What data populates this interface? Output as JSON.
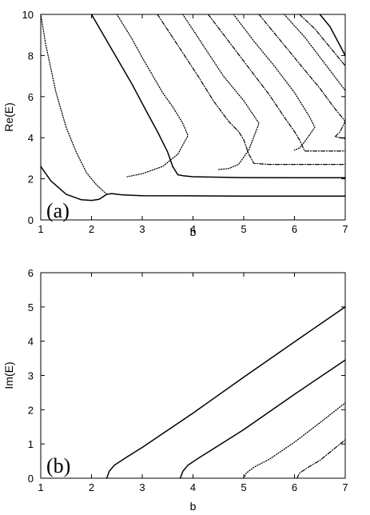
{
  "chart_data": [
    {
      "type": "line",
      "panel_label": "(a)",
      "xlabel": "b",
      "ylabel": "Re(E)",
      "xlim": [
        1,
        7
      ],
      "ylim": [
        0,
        10
      ],
      "xticks": [
        "1",
        "2",
        "3",
        "4",
        "5",
        "6",
        "7"
      ],
      "yticks": [
        "0",
        "2",
        "4",
        "6",
        "8",
        "10"
      ],
      "grid": false,
      "legend": "none",
      "series": [
        {
          "style": "solid",
          "color": "#000000",
          "points": [
            [
              1.0,
              2.6
            ],
            [
              1.2,
              1.9
            ],
            [
              1.5,
              1.25
            ],
            [
              1.8,
              0.98
            ],
            [
              2.0,
              0.95
            ],
            [
              2.15,
              1.0
            ],
            [
              2.3,
              1.25
            ],
            [
              2.4,
              1.28
            ],
            [
              2.6,
              1.22
            ],
            [
              3.0,
              1.18
            ],
            [
              4.0,
              1.17
            ],
            [
              5.0,
              1.16
            ],
            [
              6.0,
              1.16
            ],
            [
              7.0,
              1.16
            ]
          ]
        },
        {
          "style": "dotted",
          "color": "#000000",
          "points": [
            [
              1.0,
              10.0
            ],
            [
              1.1,
              8.5
            ],
            [
              1.3,
              6.2
            ],
            [
              1.5,
              4.5
            ],
            [
              1.7,
              3.3
            ],
            [
              1.9,
              2.3
            ],
            [
              2.1,
              1.7
            ],
            [
              2.3,
              1.25
            ]
          ]
        },
        {
          "style": "solid",
          "color": "#000000",
          "points": [
            [
              2.0,
              10.0
            ],
            [
              2.4,
              8.3
            ],
            [
              2.8,
              6.6
            ],
            [
              3.1,
              5.2
            ],
            [
              3.3,
              4.3
            ],
            [
              3.5,
              3.3
            ],
            [
              3.6,
              2.6
            ],
            [
              3.7,
              2.2
            ],
            [
              3.8,
              2.15
            ],
            [
              4.0,
              2.1
            ],
            [
              5.0,
              2.06
            ],
            [
              6.0,
              2.05
            ],
            [
              7.0,
              2.05
            ]
          ]
        },
        {
          "style": "dotted",
          "color": "#000000",
          "points": [
            [
              2.5,
              10.0
            ],
            [
              2.8,
              8.8
            ],
            [
              3.0,
              7.9
            ],
            [
              3.4,
              6.2
            ],
            [
              3.6,
              5.5
            ],
            [
              3.8,
              4.7
            ],
            [
              3.9,
              4.1
            ],
            [
              3.7,
              3.2
            ],
            [
              3.4,
              2.6
            ],
            [
              3.0,
              2.25
            ],
            [
              2.7,
              2.1
            ]
          ]
        },
        {
          "style": "dash-dot",
          "color": "#000000",
          "points": [
            [
              3.3,
              10.0
            ],
            [
              3.7,
              8.5
            ],
            [
              4.1,
              7.0
            ],
            [
              4.4,
              5.8
            ],
            [
              4.7,
              4.8
            ],
            [
              4.9,
              4.3
            ],
            [
              5.0,
              3.9
            ],
            [
              5.1,
              3.2
            ],
            [
              5.2,
              2.75
            ],
            [
              5.5,
              2.7
            ],
            [
              6.0,
              2.7
            ],
            [
              7.0,
              2.7
            ]
          ]
        },
        {
          "style": "dotted",
          "color": "#000000",
          "points": [
            [
              3.8,
              10.0
            ],
            [
              4.2,
              8.5
            ],
            [
              4.6,
              7.0
            ],
            [
              5.0,
              5.8
            ],
            [
              5.3,
              4.7
            ],
            [
              5.1,
              3.4
            ],
            [
              4.9,
              2.7
            ],
            [
              4.7,
              2.5
            ],
            [
              4.5,
              2.45
            ]
          ]
        },
        {
          "style": "dash-dot",
          "color": "#000000",
          "points": [
            [
              4.3,
              10.0
            ],
            [
              4.7,
              8.7
            ],
            [
              5.1,
              7.4
            ],
            [
              5.5,
              6.1
            ],
            [
              5.8,
              5.0
            ],
            [
              6.0,
              4.3
            ],
            [
              6.1,
              3.9
            ],
            [
              6.2,
              3.35
            ],
            [
              6.5,
              3.35
            ],
            [
              7.0,
              3.35
            ]
          ]
        },
        {
          "style": "dotted",
          "color": "#000000",
          "points": [
            [
              4.8,
              10.0
            ],
            [
              5.2,
              8.7
            ],
            [
              5.6,
              7.5
            ],
            [
              6.0,
              6.2
            ],
            [
              6.3,
              5.0
            ],
            [
              6.4,
              4.5
            ],
            [
              6.2,
              3.8
            ],
            [
              6.1,
              3.5
            ],
            [
              6.0,
              3.4
            ]
          ]
        },
        {
          "style": "dash-dot",
          "color": "#000000",
          "points": [
            [
              5.3,
              10.0
            ],
            [
              5.7,
              8.8
            ],
            [
              6.1,
              7.6
            ],
            [
              6.5,
              6.4
            ],
            [
              6.8,
              5.4
            ],
            [
              7.0,
              4.8
            ],
            [
              6.9,
              4.3
            ],
            [
              6.8,
              4.05
            ],
            [
              7.0,
              3.95
            ]
          ]
        },
        {
          "style": "dotted",
          "color": "#000000",
          "points": [
            [
              5.8,
              10.0
            ],
            [
              6.2,
              8.9
            ],
            [
              6.6,
              7.6
            ],
            [
              7.0,
              6.3
            ]
          ]
        },
        {
          "style": "dash-dot",
          "color": "#000000",
          "points": [
            [
              6.1,
              10.0
            ],
            [
              6.4,
              9.3
            ],
            [
              6.7,
              8.4
            ],
            [
              7.0,
              7.5
            ]
          ]
        },
        {
          "style": "solid",
          "color": "#000000",
          "points": [
            [
              6.5,
              10.0
            ],
            [
              6.7,
              9.4
            ],
            [
              7.0,
              8.0
            ]
          ]
        }
      ]
    },
    {
      "type": "line",
      "panel_label": "(b)",
      "xlabel": "b",
      "ylabel": "Im(E)",
      "xlim": [
        1,
        7
      ],
      "ylim": [
        0,
        6
      ],
      "xticks": [
        "1",
        "2",
        "3",
        "4",
        "5",
        "6",
        "7"
      ],
      "yticks": [
        "0",
        "1",
        "2",
        "3",
        "4",
        "5",
        "6"
      ],
      "grid": false,
      "legend": "none",
      "series": [
        {
          "style": "solid",
          "color": "#000000",
          "points": [
            [
              2.3,
              0.0
            ],
            [
              2.35,
              0.2
            ],
            [
              2.45,
              0.38
            ],
            [
              2.7,
              0.62
            ],
            [
              3.0,
              0.9
            ],
            [
              4.0,
              1.9
            ],
            [
              5.0,
              2.95
            ],
            [
              6.0,
              3.98
            ],
            [
              7.0,
              5.0
            ]
          ]
        },
        {
          "style": "solid",
          "color": "#000000",
          "points": [
            [
              3.75,
              0.0
            ],
            [
              3.8,
              0.2
            ],
            [
              3.9,
              0.38
            ],
            [
              4.1,
              0.58
            ],
            [
              4.5,
              0.95
            ],
            [
              5.0,
              1.42
            ],
            [
              6.0,
              2.45
            ],
            [
              7.0,
              3.45
            ]
          ]
        },
        {
          "style": "dotted",
          "color": "#000000",
          "points": [
            [
              5.0,
              0.0
            ],
            [
              5.05,
              0.15
            ],
            [
              5.2,
              0.32
            ],
            [
              5.5,
              0.55
            ],
            [
              6.0,
              1.05
            ],
            [
              6.5,
              1.62
            ],
            [
              7.0,
              2.2
            ]
          ]
        },
        {
          "style": "dash-dot",
          "color": "#000000",
          "points": [
            [
              6.05,
              0.0
            ],
            [
              6.1,
              0.15
            ],
            [
              6.25,
              0.3
            ],
            [
              6.5,
              0.52
            ],
            [
              7.0,
              1.12
            ]
          ]
        }
      ]
    }
  ]
}
